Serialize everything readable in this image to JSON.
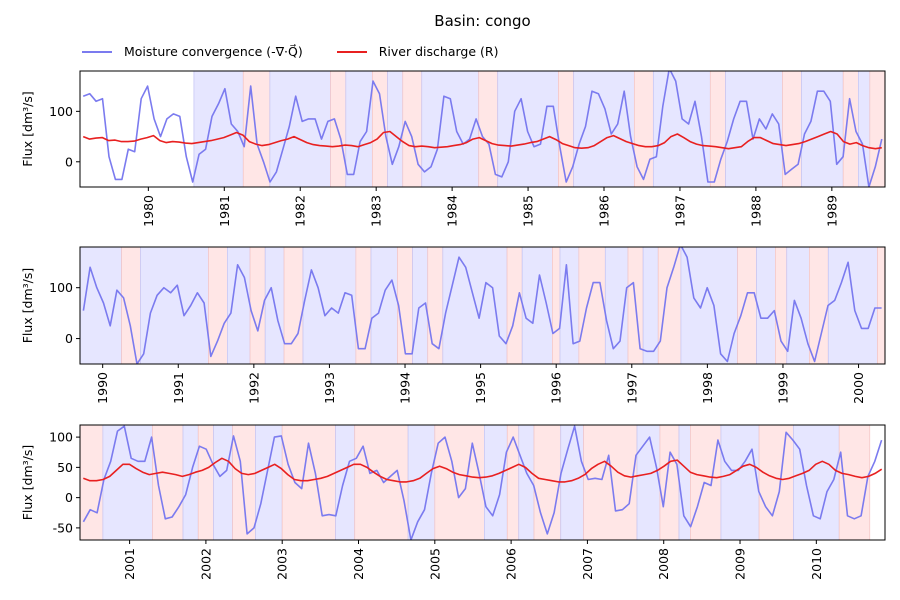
{
  "title": "Basin: congo",
  "legend": {
    "moisture": "Moisture convergence (-∇·Q⃗)",
    "discharge": "River discharge (R)"
  },
  "colors": {
    "moisture": "#7b7bef",
    "discharge": "#e82020",
    "pos_span": "#e6e6ff",
    "neg_span": "#ffe6e6"
  },
  "chart_data": [
    {
      "type": "line",
      "xlim": [
        1979.1,
        1989.7
      ],
      "ylim": [
        -50,
        180
      ],
      "ylabel": "Flux [dm³/s]",
      "yticks": [
        0,
        100
      ],
      "xticks": [
        "1980",
        "1981",
        "1982",
        "1983",
        "1984",
        "1985",
        "1986",
        "1987",
        "1988",
        "1989"
      ],
      "spans": [
        {
          "from": 1980.6,
          "to": 1981.25,
          "type": "pos"
        },
        {
          "from": 1981.25,
          "to": 1981.6,
          "type": "neg"
        },
        {
          "from": 1981.6,
          "to": 1982.4,
          "type": "pos"
        },
        {
          "from": 1982.4,
          "to": 1982.6,
          "type": "neg"
        },
        {
          "from": 1982.6,
          "to": 1982.95,
          "type": "pos"
        },
        {
          "from": 1982.95,
          "to": 1983.15,
          "type": "neg"
        },
        {
          "from": 1983.15,
          "to": 1983.35,
          "type": "pos"
        },
        {
          "from": 1983.35,
          "to": 1983.6,
          "type": "neg"
        },
        {
          "from": 1983.6,
          "to": 1984.35,
          "type": "pos"
        },
        {
          "from": 1984.35,
          "to": 1984.6,
          "type": "neg"
        },
        {
          "from": 1984.6,
          "to": 1985.4,
          "type": "pos"
        },
        {
          "from": 1985.4,
          "to": 1985.6,
          "type": "neg"
        },
        {
          "from": 1985.6,
          "to": 1986.4,
          "type": "pos"
        },
        {
          "from": 1986.4,
          "to": 1986.65,
          "type": "neg"
        },
        {
          "from": 1986.65,
          "to": 1987.4,
          "type": "pos"
        },
        {
          "from": 1987.4,
          "to": 1987.6,
          "type": "neg"
        },
        {
          "from": 1987.6,
          "to": 1988.35,
          "type": "pos"
        },
        {
          "from": 1988.35,
          "to": 1988.6,
          "type": "neg"
        },
        {
          "from": 1988.6,
          "to": 1989.15,
          "type": "pos"
        },
        {
          "from": 1989.15,
          "to": 1989.35,
          "type": "neg"
        },
        {
          "from": 1989.35,
          "to": 1989.5,
          "type": "pos"
        },
        {
          "from": 1989.5,
          "to": 1989.7,
          "type": "neg"
        }
      ],
      "moisture": [
        130,
        135,
        120,
        125,
        10,
        -35,
        -35,
        25,
        20,
        125,
        150,
        85,
        50,
        85,
        95,
        90,
        10,
        -40,
        15,
        25,
        90,
        115,
        145,
        75,
        60,
        30,
        150,
        35,
        0,
        -40,
        -20,
        25,
        70,
        130,
        80,
        85,
        85,
        45,
        80,
        85,
        45,
        -25,
        -25,
        40,
        60,
        160,
        135,
        50,
        -5,
        30,
        80,
        50,
        -5,
        -20,
        -10,
        25,
        130,
        125,
        60,
        35,
        45,
        85,
        50,
        35,
        -25,
        -30,
        0,
        100,
        125,
        60,
        30,
        35,
        110,
        110,
        30,
        -40,
        -10,
        35,
        70,
        140,
        135,
        105,
        55,
        75,
        140,
        50,
        -10,
        -35,
        5,
        10,
        110,
        185,
        160,
        85,
        75,
        120,
        50,
        -40,
        -40,
        5,
        40,
        85,
        120,
        120,
        45,
        85,
        65,
        95,
        75,
        -25,
        -15,
        -5,
        55,
        80,
        140,
        140,
        120,
        -5,
        10,
        125,
        60,
        35,
        -50,
        -10,
        45
      ],
      "discharge": [
        50,
        45,
        47,
        48,
        42,
        43,
        40,
        40,
        41,
        45,
        48,
        52,
        42,
        38,
        40,
        39,
        37,
        36,
        38,
        40,
        42,
        45,
        48,
        53,
        58,
        53,
        40,
        35,
        32,
        34,
        38,
        42,
        45,
        50,
        44,
        38,
        34,
        32,
        31,
        30,
        31,
        33,
        32,
        30,
        34,
        38,
        45,
        58,
        60,
        50,
        40,
        32,
        30,
        31,
        30,
        28,
        29,
        30,
        32,
        34,
        38,
        45,
        48,
        42,
        36,
        33,
        32,
        31,
        33,
        35,
        38,
        40,
        45,
        50,
        44,
        36,
        32,
        28,
        27,
        28,
        32,
        40,
        48,
        52,
        46,
        40,
        36,
        32,
        30,
        30,
        32,
        38,
        50,
        55,
        48,
        40,
        35,
        32,
        31,
        30,
        28,
        26,
        28,
        30,
        40,
        48,
        48,
        42,
        36,
        34,
        32,
        34,
        36,
        40,
        45,
        50,
        55,
        60,
        55,
        40,
        35,
        38,
        32,
        28,
        26,
        28
      ]
    },
    {
      "type": "line",
      "xlim": [
        1989.7,
        2000.35
      ],
      "ylim": [
        -50,
        180
      ],
      "ylabel": "Flux [dm³/s]",
      "yticks": [
        0,
        100
      ],
      "xticks": [
        "1990",
        "1991",
        "1992",
        "1993",
        "1994",
        "1995",
        "1996",
        "1997",
        "1998",
        "1999",
        "2000"
      ],
      "spans": [
        {
          "from": 1989.7,
          "to": 1990.25,
          "type": "pos"
        },
        {
          "from": 1990.25,
          "to": 1990.5,
          "type": "neg"
        },
        {
          "from": 1990.5,
          "to": 1991.4,
          "type": "pos"
        },
        {
          "from": 1991.4,
          "to": 1991.65,
          "type": "neg"
        },
        {
          "from": 1991.65,
          "to": 1991.95,
          "type": "pos"
        },
        {
          "from": 1991.95,
          "to": 1992.15,
          "type": "neg"
        },
        {
          "from": 1992.15,
          "to": 1992.4,
          "type": "pos"
        },
        {
          "from": 1992.4,
          "to": 1992.65,
          "type": "neg"
        },
        {
          "from": 1992.65,
          "to": 1993.35,
          "type": "pos"
        },
        {
          "from": 1993.35,
          "to": 1993.55,
          "type": "neg"
        },
        {
          "from": 1993.55,
          "to": 1993.9,
          "type": "pos"
        },
        {
          "from": 1993.9,
          "to": 1994.1,
          "type": "neg"
        },
        {
          "from": 1994.1,
          "to": 1994.3,
          "type": "pos"
        },
        {
          "from": 1994.3,
          "to": 1994.5,
          "type": "neg"
        },
        {
          "from": 1994.5,
          "to": 1995.35,
          "type": "pos"
        },
        {
          "from": 1995.35,
          "to": 1995.55,
          "type": "neg"
        },
        {
          "from": 1995.55,
          "to": 1995.95,
          "type": "pos"
        },
        {
          "from": 1995.95,
          "to": 1996.05,
          "type": "neg"
        },
        {
          "from": 1996.05,
          "to": 1996.3,
          "type": "pos"
        },
        {
          "from": 1996.3,
          "to": 1996.65,
          "type": "neg"
        },
        {
          "from": 1996.65,
          "to": 1996.95,
          "type": "pos"
        },
        {
          "from": 1996.95,
          "to": 1997.15,
          "type": "neg"
        },
        {
          "from": 1997.15,
          "to": 1997.35,
          "type": "pos"
        },
        {
          "from": 1997.35,
          "to": 1997.65,
          "type": "neg"
        },
        {
          "from": 1997.65,
          "to": 1998.4,
          "type": "pos"
        },
        {
          "from": 1998.4,
          "to": 1998.65,
          "type": "neg"
        },
        {
          "from": 1998.65,
          "to": 1998.9,
          "type": "pos"
        },
        {
          "from": 1998.9,
          "to": 1999.05,
          "type": "neg"
        },
        {
          "from": 1999.05,
          "to": 1999.35,
          "type": "pos"
        },
        {
          "from": 1999.35,
          "to": 1999.6,
          "type": "neg"
        },
        {
          "from": 1999.6,
          "to": 2000.25,
          "type": "pos"
        },
        {
          "from": 2000.25,
          "to": 2000.35,
          "type": "neg"
        }
      ],
      "moisture": [
        55,
        140,
        100,
        70,
        25,
        95,
        80,
        25,
        -50,
        -30,
        50,
        85,
        100,
        90,
        105,
        45,
        65,
        90,
        70,
        -35,
        -5,
        30,
        50,
        145,
        120,
        55,
        15,
        75,
        100,
        35,
        -10,
        -10,
        10,
        75,
        135,
        100,
        45,
        60,
        50,
        90,
        85,
        -20,
        -20,
        40,
        50,
        95,
        115,
        65,
        -30,
        -30,
        60,
        70,
        -10,
        -20,
        50,
        105,
        160,
        140,
        90,
        40,
        110,
        100,
        5,
        -10,
        25,
        90,
        40,
        30,
        125,
        70,
        10,
        20,
        145,
        -10,
        -5,
        60,
        110,
        110,
        35,
        -20,
        -5,
        100,
        110,
        -20,
        -25,
        -25,
        -5,
        100,
        140,
        185,
        160,
        80,
        60,
        100,
        65,
        -30,
        -45,
        10,
        45,
        90,
        90,
        40,
        40,
        55,
        -5,
        -25,
        75,
        40,
        -10,
        -45,
        10,
        65,
        75,
        110,
        150,
        55,
        20,
        20,
        60,
        60
      ]
    },
    {
      "type": "line",
      "xlim": [
        2000.35,
        2010.9
      ],
      "ylim": [
        -70,
        120
      ],
      "ylabel": "Flux [dm³/s]",
      "yticks": [
        -50,
        0,
        50,
        100
      ],
      "xticks": [
        "2001",
        "2002",
        "2003",
        "2004",
        "2005",
        "2006",
        "2007",
        "2008",
        "2009",
        "2010"
      ],
      "spans": [
        {
          "from": 2000.35,
          "to": 2000.65,
          "type": "neg"
        },
        {
          "from": 2000.65,
          "to": 2001.3,
          "type": "pos"
        },
        {
          "from": 2001.3,
          "to": 2001.7,
          "type": "neg"
        },
        {
          "from": 2001.7,
          "to": 2001.9,
          "type": "pos"
        },
        {
          "from": 2001.9,
          "to": 2002.1,
          "type": "neg"
        },
        {
          "from": 2002.1,
          "to": 2002.35,
          "type": "pos"
        },
        {
          "from": 2002.35,
          "to": 2002.65,
          "type": "neg"
        },
        {
          "from": 2002.65,
          "to": 2003.0,
          "type": "pos"
        },
        {
          "from": 2003.0,
          "to": 2003.7,
          "type": "neg"
        },
        {
          "from": 2003.7,
          "to": 2003.95,
          "type": "pos"
        },
        {
          "from": 2003.95,
          "to": 2004.65,
          "type": "neg"
        },
        {
          "from": 2004.65,
          "to": 2005.0,
          "type": "pos"
        },
        {
          "from": 2005.0,
          "to": 2005.65,
          "type": "neg"
        },
        {
          "from": 2005.65,
          "to": 2005.95,
          "type": "pos"
        },
        {
          "from": 2005.95,
          "to": 2006.1,
          "type": "neg"
        },
        {
          "from": 2006.1,
          "to": 2006.3,
          "type": "pos"
        },
        {
          "from": 2006.3,
          "to": 2006.65,
          "type": "neg"
        },
        {
          "from": 2006.65,
          "to": 2006.95,
          "type": "pos"
        },
        {
          "from": 2006.95,
          "to": 2007.65,
          "type": "neg"
        },
        {
          "from": 2007.65,
          "to": 2007.95,
          "type": "pos"
        },
        {
          "from": 2007.95,
          "to": 2008.2,
          "type": "neg"
        },
        {
          "from": 2008.2,
          "to": 2008.35,
          "type": "pos"
        },
        {
          "from": 2008.35,
          "to": 2008.75,
          "type": "neg"
        },
        {
          "from": 2008.75,
          "to": 2009.25,
          "type": "pos"
        },
        {
          "from": 2009.25,
          "to": 2009.7,
          "type": "neg"
        },
        {
          "from": 2009.7,
          "to": 2010.3,
          "type": "pos"
        },
        {
          "from": 2010.3,
          "to": 2010.7,
          "type": "neg"
        }
      ],
      "moisture": [
        -40,
        -20,
        -25,
        30,
        60,
        110,
        118,
        65,
        60,
        60,
        100,
        20,
        -35,
        -32,
        -15,
        5,
        50,
        85,
        80,
        55,
        35,
        45,
        102,
        60,
        -60,
        -50,
        -10,
        45,
        100,
        102,
        55,
        25,
        15,
        90,
        40,
        -30,
        -28,
        -30,
        20,
        60,
        65,
        85,
        40,
        45,
        25,
        35,
        45,
        -5,
        -70,
        -40,
        -20,
        40,
        90,
        100,
        60,
        0,
        15,
        90,
        40,
        -15,
        -30,
        5,
        75,
        100,
        70,
        40,
        20,
        -25,
        -60,
        -25,
        40,
        80,
        118,
        60,
        30,
        32,
        30,
        70,
        -22,
        -20,
        -10,
        70,
        85,
        100,
        50,
        -15,
        75,
        55,
        -30,
        -48,
        -15,
        25,
        20,
        95,
        60,
        45,
        45,
        60,
        80,
        10,
        -15,
        -30,
        10,
        108,
        95,
        80,
        20,
        -30,
        -35,
        10,
        30,
        75,
        -30,
        -35,
        -30,
        35,
        60,
        95
      ],
      "discharge": [
        32,
        28,
        28,
        30,
        35,
        45,
        55,
        55,
        48,
        42,
        38,
        40,
        42,
        40,
        38,
        35,
        38,
        42,
        45,
        50,
        58,
        65,
        60,
        48,
        40,
        38,
        40,
        45,
        50,
        55,
        48,
        38,
        30,
        28,
        28,
        30,
        32,
        35,
        40,
        45,
        50,
        55,
        55,
        50,
        42,
        35,
        30,
        28,
        26,
        26,
        28,
        32,
        40,
        48,
        52,
        48,
        42,
        38,
        36,
        34,
        33,
        34,
        36,
        40,
        45,
        50,
        55,
        50,
        40,
        32,
        30,
        28,
        26,
        26,
        28,
        32,
        38,
        48,
        55,
        60,
        52,
        42,
        36,
        34,
        36,
        38,
        40,
        45,
        52,
        60,
        62,
        52,
        42,
        38,
        36,
        34,
        33,
        35,
        38,
        45,
        52,
        55,
        50,
        42,
        36,
        32,
        30,
        32,
        36,
        40,
        45,
        55,
        60,
        55,
        45,
        40,
        38,
        35,
        33,
        35,
        40,
        47
      ]
    }
  ]
}
